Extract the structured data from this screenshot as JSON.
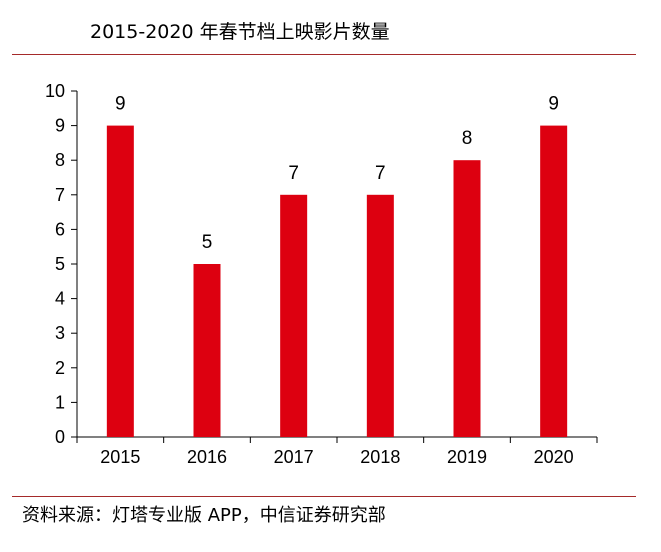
{
  "chart_data": {
    "type": "bar",
    "title": "2015-2020 年春节档上映影片数量",
    "categories": [
      "2015",
      "2016",
      "2017",
      "2018",
      "2019",
      "2020"
    ],
    "values": [
      9,
      5,
      7,
      7,
      8,
      9
    ],
    "data_labels": [
      "9",
      "5",
      "7",
      "7",
      "8",
      "9"
    ],
    "xlabel": "",
    "ylabel": "",
    "ylim": [
      0,
      10
    ],
    "yticks": [
      0,
      1,
      2,
      3,
      4,
      5,
      6,
      7,
      8,
      9,
      10
    ],
    "bar_color": "#dd0010",
    "grid": false,
    "legend": "none"
  },
  "source": "资料来源：灯塔专业版 APP，中信证券研究部",
  "colors": {
    "rule": "#a52a2a"
  }
}
